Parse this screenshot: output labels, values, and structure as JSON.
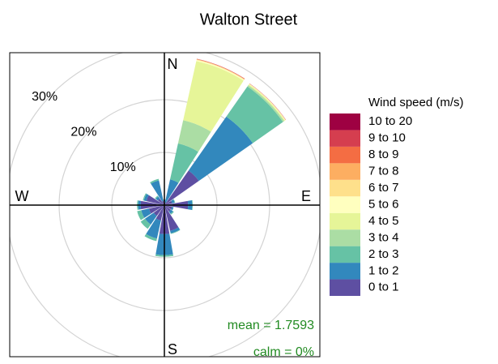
{
  "chart_data": {
    "type": "windrose",
    "title": "Walton Street",
    "legend_title": "Wind speed (m/s)",
    "directions": [
      0,
      22.5,
      45,
      67.5,
      90,
      112.5,
      135,
      157.5,
      180,
      202.5,
      225,
      247.5,
      270,
      292.5,
      315,
      337.5
    ],
    "rlim": [
      0,
      40
    ],
    "rticks": [
      {
        "value": 10,
        "label": "10%"
      },
      {
        "value": 20,
        "label": "20%"
      },
      {
        "value": 30,
        "label": "30%"
      }
    ],
    "compass": [
      "N",
      "E",
      "S",
      "W"
    ],
    "grid": true,
    "series": [
      {
        "name": "0 to 1",
        "color": "#5e4fa2",
        "values": [
          0.5,
          0.5,
          8.0,
          1.5,
          4.5,
          1.5,
          1.5,
          5.0,
          5.5,
          3.0,
          2.5,
          3.0,
          4.5,
          3.5,
          1.5,
          0.8
        ]
      },
      {
        "name": "1 to 2",
        "color": "#3288bd",
        "values": [
          0.5,
          4.5,
          12.5,
          0.5,
          0.8,
          0.3,
          0.5,
          0.5,
          4.0,
          3.5,
          2.0,
          1.5,
          0.5,
          0.5,
          0.5,
          4.0
        ]
      },
      {
        "name": "2 to 3",
        "color": "#66c2a5",
        "values": [
          0.1,
          7.0,
          7.0,
          0.1,
          0.1,
          0,
          0.2,
          0.1,
          0.3,
          0.5,
          1.0,
          0.8,
          0.2,
          0.2,
          0.2,
          0.3
        ]
      },
      {
        "name": "3 to 4",
        "color": "#abdda4",
        "values": [
          0,
          4.5,
          0.3,
          0,
          0,
          0,
          0,
          0,
          0,
          0,
          0,
          0,
          0,
          0,
          0,
          0
        ]
      },
      {
        "name": "4 to 5",
        "color": "#e6f598",
        "values": [
          0,
          11.5,
          0.2,
          0,
          0,
          0,
          0,
          0,
          0,
          0,
          0,
          0,
          0,
          0,
          0,
          0
        ]
      },
      {
        "name": "5 to 6",
        "color": "#ffffbf",
        "values": [
          0,
          0.2,
          0.1,
          0,
          0,
          0,
          0,
          0,
          0,
          0,
          0,
          0,
          0,
          0,
          0,
          0
        ]
      },
      {
        "name": "6 to 7",
        "color": "#fee08b",
        "values": [
          0,
          0.1,
          0.05,
          0,
          0,
          0,
          0,
          0,
          0,
          0,
          0,
          0,
          0,
          0,
          0,
          0
        ]
      },
      {
        "name": "7 to 8",
        "color": "#fdae61",
        "values": [
          0,
          0.05,
          0,
          0,
          0,
          0,
          0,
          0,
          0,
          0,
          0,
          0,
          0,
          0,
          0,
          0
        ]
      },
      {
        "name": "8 to 9",
        "color": "#f46d43",
        "values": [
          0,
          0.05,
          0,
          0,
          0,
          0,
          0,
          0,
          0,
          0,
          0,
          0,
          0,
          0,
          0,
          0
        ]
      },
      {
        "name": "9 to 10",
        "color": "#d53e4f",
        "values": [
          0,
          0.05,
          0.05,
          0,
          0,
          0,
          0,
          0,
          0,
          0,
          0,
          0,
          0,
          0,
          0,
          0
        ]
      },
      {
        "name": "10 to 20",
        "color": "#9e0142",
        "values": [
          0,
          0,
          0,
          0,
          0,
          0,
          0,
          0,
          0,
          0,
          0,
          0,
          0,
          0,
          0,
          0
        ]
      }
    ],
    "annotations": [
      "mean = 1.7593",
      "calm = 0%"
    ]
  }
}
